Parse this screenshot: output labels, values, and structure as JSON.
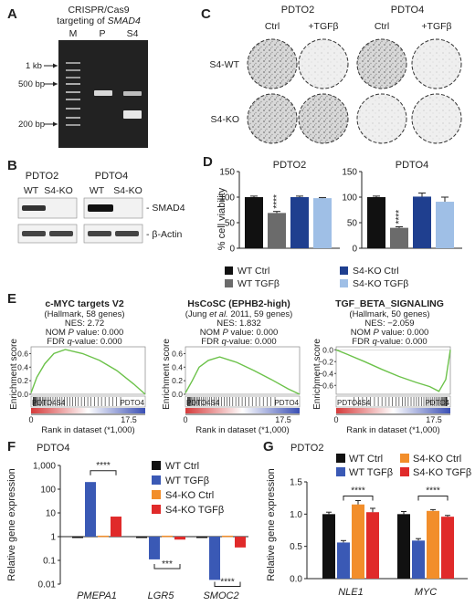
{
  "colors": {
    "wt_ctrl": "#111111",
    "wt_tgf": "#6b6b6b",
    "s4_ctrl": "#1f3f8f",
    "s4_tgf": "#9fbfe6",
    "f_wt_ctrl": "#111111",
    "f_wt_tgf": "#3a59b5",
    "f_s4_ctrl": "#f28e2b",
    "f_s4_tgf": "#e02a2a",
    "gsea_line": "#6cc24a"
  },
  "panelA": {
    "letter": "A",
    "title1": "CRISPR/Cas9",
    "title2": "targeting of",
    "title_gene": "SMAD4",
    "lanes": [
      "M",
      "P",
      "S4"
    ],
    "markers": [
      "1 kb",
      "500 bp",
      "200 bp"
    ]
  },
  "panelB": {
    "letter": "B",
    "groups": [
      "PDTO2",
      "PDTO4"
    ],
    "lanes": [
      "WT",
      "S4-KO",
      "WT",
      "S4-KO"
    ],
    "bands": [
      "- SMAD4",
      "- β-Actin"
    ]
  },
  "panelC": {
    "letter": "C",
    "groups": [
      "PDTO2",
      "PDTO4"
    ],
    "cols": [
      "Ctrl",
      "+TGFβ",
      "Ctrl",
      "+TGFβ"
    ],
    "rows": [
      "S4-WT",
      "S4-KO"
    ]
  },
  "panelD": {
    "letter": "D",
    "ylabel": "% cell viability",
    "yticks": [
      "0",
      "50",
      "100",
      "150"
    ],
    "legend": [
      "WT Ctrl",
      "WT TGFβ",
      "S4-KO Ctrl",
      "S4-KO TGFβ"
    ],
    "chart_data": [
      {
        "type": "bar",
        "title": "PDTO2",
        "categories": [
          "WT Ctrl",
          "WT TGFβ",
          "S4-KO Ctrl",
          "S4-KO TGFβ"
        ],
        "values": [
          100,
          69,
          100,
          98
        ],
        "errors": [
          2,
          3,
          2,
          1
        ],
        "ylim": [
          0,
          150
        ],
        "annotation": "****"
      },
      {
        "type": "bar",
        "title": "PDTO4",
        "categories": [
          "WT Ctrl",
          "WT TGFβ",
          "S4-KO Ctrl",
          "S4-KO TGFβ"
        ],
        "values": [
          100,
          40,
          101,
          91
        ],
        "errors": [
          2,
          2,
          7,
          9
        ],
        "ylim": [
          0,
          150
        ],
        "annotation": "****"
      }
    ]
  },
  "panelE": {
    "letter": "E",
    "ylabel": "Enrichment score",
    "xlabel": "Rank in dataset (*1,000)",
    "plots": [
      {
        "title": "c-MYC targets V2",
        "sub": "(Hallmark, 58 genes)",
        "nes": "NES: 2.72",
        "nom_a": "NOM ",
        "nom_b": "P",
        "nom_c": " value: 0.000",
        "fdr_a": "FDR ",
        "fdr_b": "q",
        "fdr_c": "-value: 0.000",
        "yticks": [
          "0.6",
          "0.4",
          "0.2",
          "0.0"
        ],
        "left": "PDTO4S4",
        "right": "PDTO4",
        "xticks": [
          "0",
          "17.5"
        ]
      },
      {
        "title": "HsCoSC (EPHB2-high)",
        "sub_a": "(Jung ",
        "sub_b": "et al.",
        "sub_c": " 2011, 59 genes)",
        "nes": "NES: 1.832",
        "nom_a": "NOM ",
        "nom_b": "P",
        "nom_c": " value: 0.000",
        "fdr_a": "FDR ",
        "fdr_b": "q",
        "fdr_c": "-value: 0.000",
        "yticks": [
          "0.6",
          "0.4",
          "0.2",
          "0.0"
        ],
        "left": "PDTO4S4",
        "right": "PDTO4",
        "xticks": [
          "0",
          "17.5"
        ]
      },
      {
        "title": "TGF_BETA_SIGNALING",
        "sub": "(Hallmark, 50 genes)",
        "nes": "NES: −2.059",
        "nom_a": "NOM ",
        "nom_b": "P",
        "nom_c": " value: 0.000",
        "fdr_a": "FDR ",
        "fdr_b": "q",
        "fdr_c": "-value: 0.000",
        "yticks": [
          "0.0",
          "−0.2",
          "−0.4",
          "−0.6"
        ],
        "left": "PDTO4S4",
        "right": "PDTO4",
        "xticks": [
          "0",
          "17.5"
        ]
      }
    ]
  },
  "panelF": {
    "letter": "F",
    "title": "PDTO4",
    "ylabel": "Relative gene expression",
    "yticks": [
      "1,000",
      "100",
      "10",
      "1",
      "0.1",
      "0.01"
    ],
    "legend": [
      "WT Ctrl",
      "WT TGFβ",
      "S4-KO Ctrl",
      "S4-KO TGFβ"
    ],
    "chart_data": {
      "type": "bar",
      "scale": "log",
      "categories": [
        "PMEPA1",
        "LGR5",
        "SMOC2"
      ],
      "series": [
        {
          "name": "WT Ctrl",
          "values": [
            1,
            1,
            1
          ]
        },
        {
          "name": "WT TGFβ",
          "values": [
            200,
            0.11,
            0.015
          ]
        },
        {
          "name": "S4-KO Ctrl",
          "values": [
            1.1,
            1.1,
            1.1
          ]
        },
        {
          "name": "S4-KO TGFβ",
          "values": [
            7,
            0.75,
            0.35
          ]
        }
      ],
      "ylim": [
        0.01,
        1000
      ],
      "annotations": [
        "****",
        "***",
        "****"
      ]
    }
  },
  "panelG": {
    "letter": "G",
    "title": "PDTO2",
    "ylabel": "Relative gene expression",
    "yticks": [
      "0.0",
      "0.5",
      "1.0",
      "1.5"
    ],
    "legend": [
      "WT Ctrl",
      "WT TGFβ",
      "S4-KO Ctrl",
      "S4-KO TGFβ"
    ],
    "chart_data": {
      "type": "bar",
      "categories": [
        "NLE1",
        "MYC"
      ],
      "series": [
        {
          "name": "WT Ctrl",
          "values": [
            1.0,
            1.0
          ]
        },
        {
          "name": "WT TGFβ",
          "values": [
            0.56,
            0.59
          ]
        },
        {
          "name": "S4-KO Ctrl",
          "values": [
            1.15,
            1.05
          ]
        },
        {
          "name": "S4-KO TGFβ",
          "values": [
            1.03,
            0.96
          ]
        }
      ],
      "ylim": [
        0,
        1.5
      ],
      "annotations": [
        "****",
        "****"
      ]
    }
  }
}
